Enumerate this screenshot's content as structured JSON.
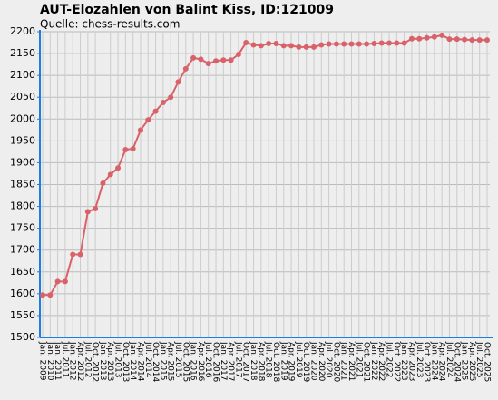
{
  "chart_data": {
    "type": "line",
    "title": "AUT-Elozahlen von Balint Kiss, ID:121009",
    "subtitle": "Quelle: chess-results.com",
    "categories": [
      "Jan. 2009",
      "Jan. 2010",
      "Jan. 2011",
      "Jul. 2011",
      "Jan. 2012",
      "Apr. 2012",
      "Jul. 2012",
      "Oct. 2012",
      "Jan. 2013",
      "Apr. 2013",
      "Jul. 2013",
      "Oct. 2013",
      "Jan. 2014",
      "Apr. 2014",
      "Jul. 2014",
      "Oct. 2014",
      "Jan. 2015",
      "Apr. 2015",
      "Jul. 2015",
      "Oct. 2015",
      "Jan. 2016",
      "Apr. 2016",
      "Jul. 2016",
      "Oct. 2016",
      "Jan. 2017",
      "Apr. 2017",
      "Jul. 2017",
      "Oct. 2017",
      "Jan. 2018",
      "Apr. 2018",
      "Jul. 2018",
      "Oct. 2018",
      "Jan. 2019",
      "Apr. 2019",
      "Jul. 2019",
      "Oct. 2019",
      "Jan. 2020",
      "Apr. 2020",
      "Jul. 2020",
      "Oct. 2020",
      "Jan. 2021",
      "Apr. 2021",
      "Jul. 2021",
      "Oct. 2021",
      "Jan. 2022",
      "Apr. 2022",
      "Jul. 2022",
      "Oct. 2022",
      "Jan. 2023",
      "Apr. 2023",
      "Jul. 2023",
      "Oct. 2023",
      "Jan. 2024",
      "Apr. 2024",
      "Jul. 2024",
      "Oct. 2024",
      "Jan. 2025",
      "Apr. 2025",
      "Jul. 2025",
      "Oct. 2025"
    ],
    "series": [
      {
        "name": "Elo",
        "color": "#d9626a",
        "values": [
          1597,
          1597,
          1628,
          1628,
          1690,
          1690,
          1788,
          1795,
          1853,
          1873,
          1888,
          1930,
          1932,
          1975,
          1998,
          2018,
          2038,
          2050,
          2085,
          2115,
          2140,
          2137,
          2127,
          2133,
          2135,
          2135,
          2148,
          2175,
          2170,
          2168,
          2173,
          2173,
          2168,
          2168,
          2165,
          2165,
          2165,
          2170,
          2172,
          2172,
          2172,
          2172,
          2172,
          2172,
          2173,
          2174,
          2174,
          2174,
          2174,
          2184,
          2184,
          2186,
          2188,
          2192,
          2183,
          2183,
          2182,
          2181,
          2181,
          2181
        ]
      }
    ],
    "ylim": [
      1500,
      2200
    ],
    "yticks": [
      1500,
      1550,
      1600,
      1650,
      1700,
      1750,
      1800,
      1850,
      1900,
      1950,
      2000,
      2050,
      2100,
      2150,
      2200
    ],
    "grid": true
  }
}
